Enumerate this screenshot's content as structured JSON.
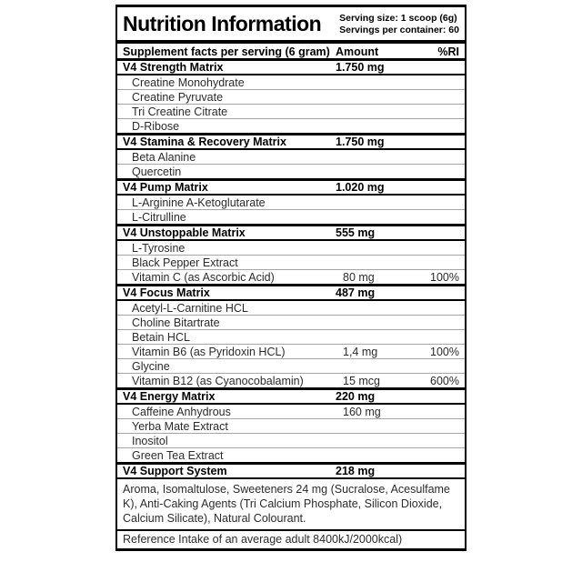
{
  "header": {
    "title": "Nutrition Information",
    "serving_size": "Serving size: 1 scoop (6g)",
    "servings_per_container": "Servings per container: 60"
  },
  "columns": {
    "name": "Supplement facts per serving (6 gram)",
    "amount": "Amount",
    "ri": "%RI"
  },
  "sections": [
    {
      "name": "V4 Strength Matrix",
      "amount": "1.750 mg",
      "ri": "",
      "items": [
        {
          "name": "Creatine Monohydrate",
          "amount": "",
          "ri": ""
        },
        {
          "name": "Creatine Pyruvate",
          "amount": "",
          "ri": ""
        },
        {
          "name": "Tri Creatine Citrate",
          "amount": "",
          "ri": ""
        },
        {
          "name": "D-Ribose",
          "amount": "",
          "ri": ""
        }
      ]
    },
    {
      "name": "V4 Stamina & Recovery Matrix",
      "amount": "1.750 mg",
      "ri": "",
      "items": [
        {
          "name": "Beta Alanine",
          "amount": "",
          "ri": ""
        },
        {
          "name": "Quercetin",
          "amount": "",
          "ri": ""
        }
      ]
    },
    {
      "name": "V4 Pump Matrix",
      "amount": "1.020 mg",
      "ri": "",
      "items": [
        {
          "name": "L-Arginine A-Ketoglutarate",
          "amount": "",
          "ri": ""
        },
        {
          "name": "L-Citrulline",
          "amount": "",
          "ri": ""
        }
      ]
    },
    {
      "name": "V4 Unstoppable Matrix",
      "amount": "555 mg",
      "ri": "",
      "items": [
        {
          "name": "L-Tyrosine",
          "amount": "",
          "ri": ""
        },
        {
          "name": "Black Pepper Extract",
          "amount": "",
          "ri": ""
        },
        {
          "name": "Vitamin C (as Ascorbic Acid)",
          "amount": "80 mg",
          "ri": "100%"
        }
      ]
    },
    {
      "name": "V4 Focus Matrix",
      "amount": "487 mg",
      "ri": "",
      "items": [
        {
          "name": "Acetyl-L-Carnitine HCL",
          "amount": "",
          "ri": ""
        },
        {
          "name": "Choline Bitartrate",
          "amount": "",
          "ri": ""
        },
        {
          "name": "Betain HCL",
          "amount": "",
          "ri": ""
        },
        {
          "name": "Vitamin B6 (as Pyridoxin HCL)",
          "amount": "1,4 mg",
          "ri": "100%"
        },
        {
          "name": "Glycine",
          "amount": "",
          "ri": ""
        },
        {
          "name": "Vitamin B12 (as Cyanocobalamin)",
          "amount": "15 mcg",
          "ri": "600%"
        }
      ]
    },
    {
      "name": "V4 Energy Matrix",
      "amount": "220 mg",
      "ri": "",
      "items": [
        {
          "name": "Caffeine Anhydrous",
          "amount": "160 mg",
          "ri": ""
        },
        {
          "name": "Yerba Mate Extract",
          "amount": "",
          "ri": ""
        },
        {
          "name": "Inositol",
          "amount": "",
          "ri": ""
        },
        {
          "name": "Green Tea Extract",
          "amount": "",
          "ri": ""
        }
      ]
    },
    {
      "name": "V4 Support System",
      "amount": "218 mg",
      "ri": "",
      "items": []
    }
  ],
  "footer": {
    "ingredients": "Aroma, Isomaltulose, Sweeteners 24 mg (Sucralose, Acesulfame K), Anti-Caking Agents (Tri Calcium Phosphate, Silicon Dioxide, Calcium Silicate), Natural Colourant.",
    "reference": "Reference Intake of an average adult 8400kJ/2000kcal)"
  },
  "colors": {
    "text": "#000000",
    "item_text": "#2b2b2b",
    "border": "#000000",
    "item_divider": "#a6a6a6",
    "background": "#ffffff"
  }
}
